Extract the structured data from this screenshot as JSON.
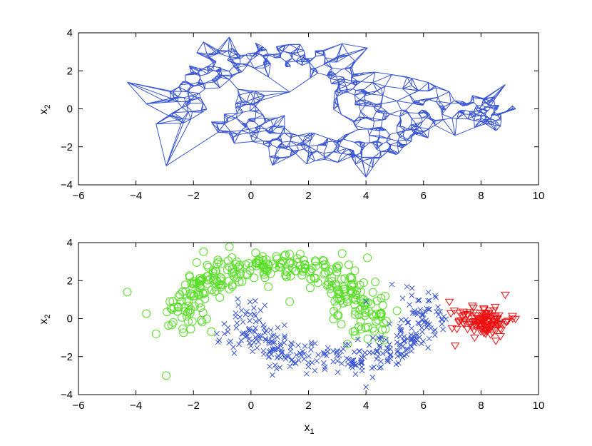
{
  "chart_data": [
    {
      "type": "line",
      "panel": "graph",
      "title": "",
      "xlabel": "",
      "ylabel_main": "x",
      "ylabel_sub": "2",
      "xlim": [
        -6,
        10
      ],
      "ylim": [
        -4,
        4
      ],
      "xticks": [
        "−6",
        "−4",
        "−2",
        "0",
        "2",
        "4",
        "6",
        "8",
        "10"
      ],
      "yticks": [
        "−4",
        "−2",
        "0",
        "2",
        "4"
      ],
      "grid": false,
      "color": "#3a56d4",
      "series": [
        {
          "description_nodes_cluster_a": "half-moon arc",
          "values": []
        }
      ]
    },
    {
      "type": "scatter",
      "panel": "clusters",
      "title": "",
      "xlabel_main": "x",
      "xlabel_sub": "1",
      "ylabel_main": "x",
      "ylabel_sub": "2",
      "xlim": [
        -6,
        10
      ],
      "ylim": [
        -4,
        4
      ],
      "xticks": [
        "−6",
        "−4",
        "−2",
        "0",
        "2",
        "4",
        "6",
        "8",
        "10"
      ],
      "yticks": [
        "−4",
        "−2",
        "0",
        "2",
        "4"
      ],
      "grid": false,
      "series": [
        {
          "marker": "circle",
          "color": "#55dd22"
        },
        {
          "marker": "x",
          "color": "#3a56d4"
        },
        {
          "marker": "triangle-down",
          "color": "#ee1111"
        }
      ]
    }
  ]
}
